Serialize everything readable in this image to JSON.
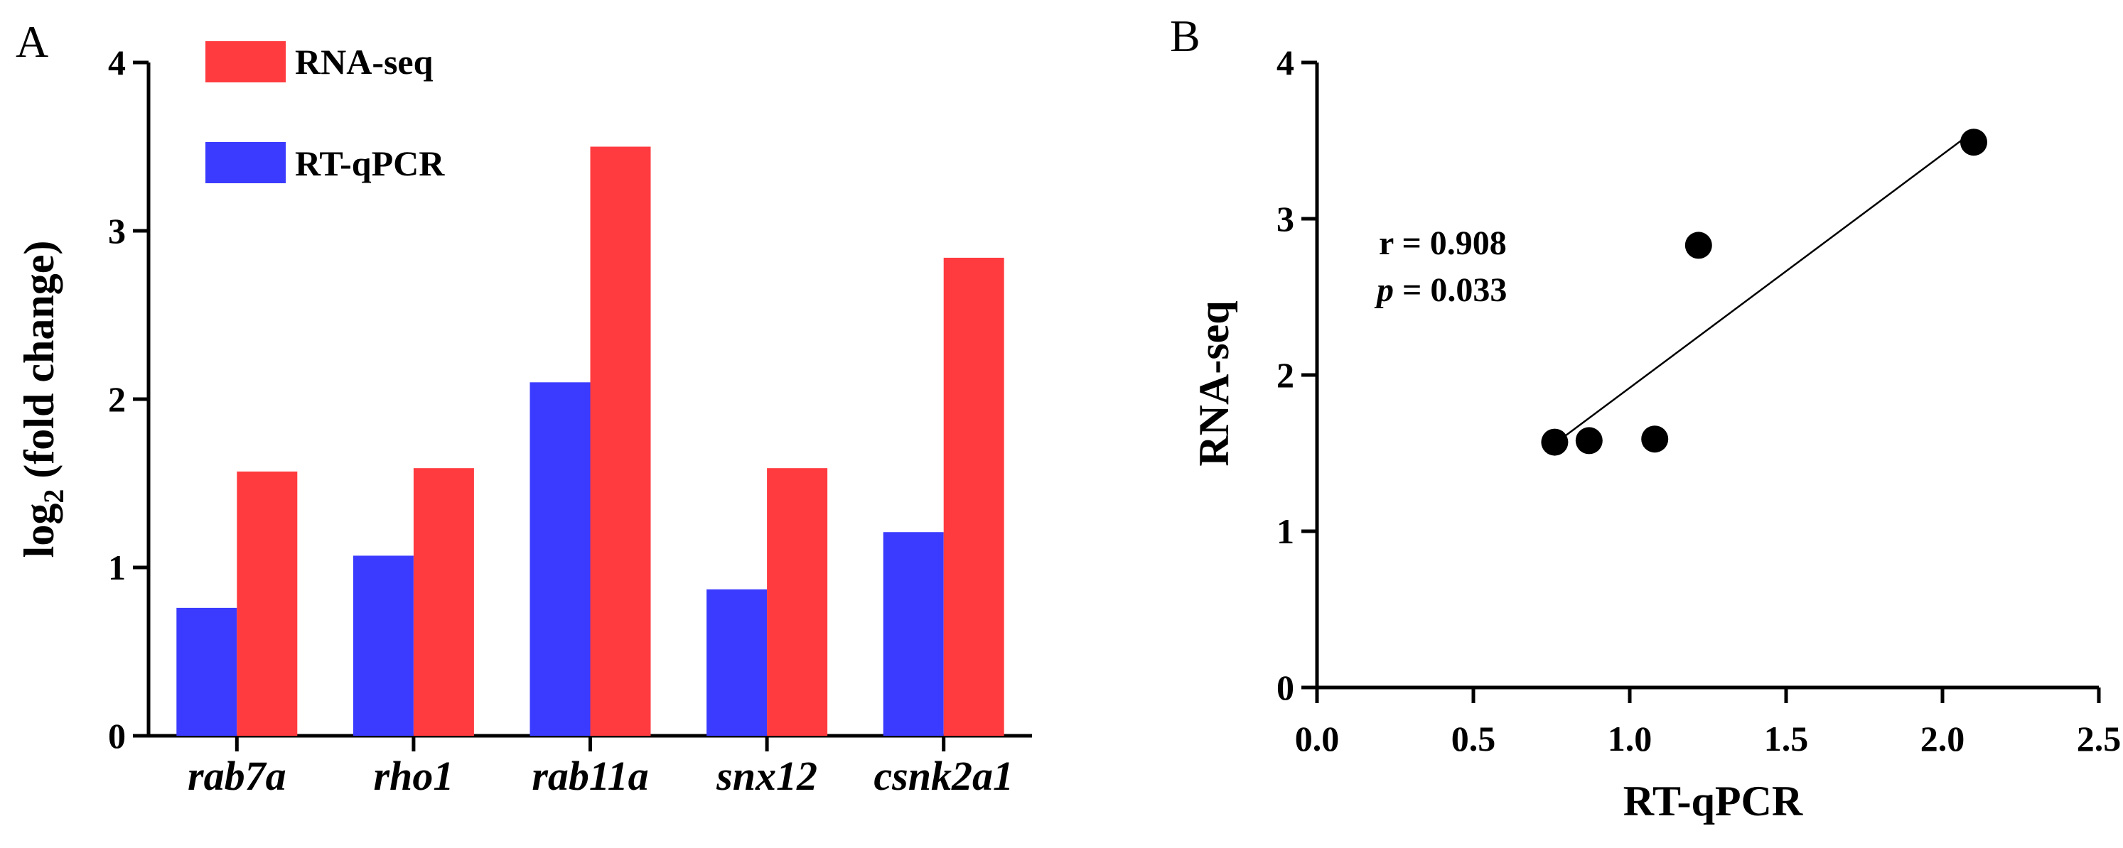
{
  "colors": {
    "rna_seq": "#ff3b3f",
    "rt_qpcr": "#3b3bff",
    "axis": "#000000",
    "point": "#000000"
  },
  "chart_data": [
    {
      "panel": "A",
      "type": "bar",
      "title": "",
      "xlabel": "",
      "ylabel_main": "log",
      "ylabel_sub": "2",
      "ylabel_rest": " (fold change)",
      "categories": [
        "rab7a",
        "rho1",
        "rab11a",
        "snx12",
        "csnk2a1"
      ],
      "series": [
        {
          "name": "RT-qPCR",
          "color": "#3b3bff",
          "values": [
            0.76,
            1.07,
            2.1,
            0.87,
            1.21
          ]
        },
        {
          "name": "RNA-seq",
          "color": "#ff3b3f",
          "values": [
            1.57,
            1.59,
            3.5,
            1.59,
            2.84
          ]
        }
      ],
      "legend": [
        "RNA-seq",
        "RT-qPCR"
      ],
      "legend_position": "top-left",
      "ylim": [
        0,
        4
      ],
      "yticks": [
        "0",
        "1",
        "2",
        "3",
        "4"
      ],
      "grid": false
    },
    {
      "panel": "B",
      "type": "scatter",
      "title": "",
      "xlabel": "RT-qPCR",
      "ylabel": "RNA-seq",
      "points": [
        {
          "x": 0.76,
          "y": 1.57
        },
        {
          "x": 0.87,
          "y": 1.58
        },
        {
          "x": 1.08,
          "y": 1.59
        },
        {
          "x": 1.22,
          "y": 2.83
        },
        {
          "x": 2.1,
          "y": 3.49
        }
      ],
      "fit_line": {
        "x": [
          0.76,
          2.1
        ],
        "y": [
          1.56,
          3.56
        ]
      },
      "xlim": [
        0,
        2.5
      ],
      "ylim": [
        0,
        4
      ],
      "xticks": [
        "0.0",
        "0.5",
        "1.0",
        "1.5",
        "2.0",
        "2.5"
      ],
      "yticks": [
        "0",
        "1",
        "2",
        "3",
        "4"
      ],
      "annotation_r": "r = 0.908",
      "annotation_p_symbol": "p",
      "annotation_p_value": " = 0.033",
      "grid": false
    }
  ]
}
